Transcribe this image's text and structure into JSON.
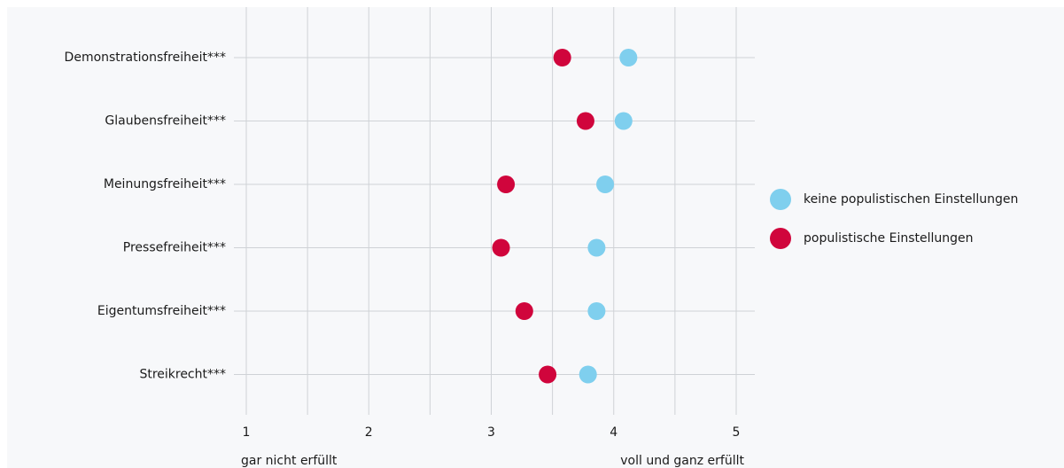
{
  "chart_data": {
    "type": "scatter",
    "categories": [
      "Demonstrationsfreiheit***",
      "Glaubensfreiheit***",
      "Meinungsfreiheit***",
      "Pressefreiheit***",
      "Eigentumsfreiheit***",
      "Streikrecht***"
    ],
    "series": [
      {
        "name": "keine populistischen Einstellungen",
        "color": "#7fcfee",
        "values": [
          4.12,
          4.08,
          3.93,
          3.86,
          3.86,
          3.79
        ]
      },
      {
        "name": "populistische Einstellungen",
        "color": "#d0053c",
        "values": [
          3.58,
          3.77,
          3.12,
          3.08,
          3.27,
          3.46
        ]
      }
    ],
    "xlim": [
      1,
      5
    ],
    "xticks": [
      "1",
      "2",
      "3",
      "4",
      "5"
    ],
    "x_anchor_labels": {
      "low": "gar nicht erfüllt",
      "high": "voll und ganz erfüllt"
    },
    "grid": true,
    "legend_position": "right"
  }
}
